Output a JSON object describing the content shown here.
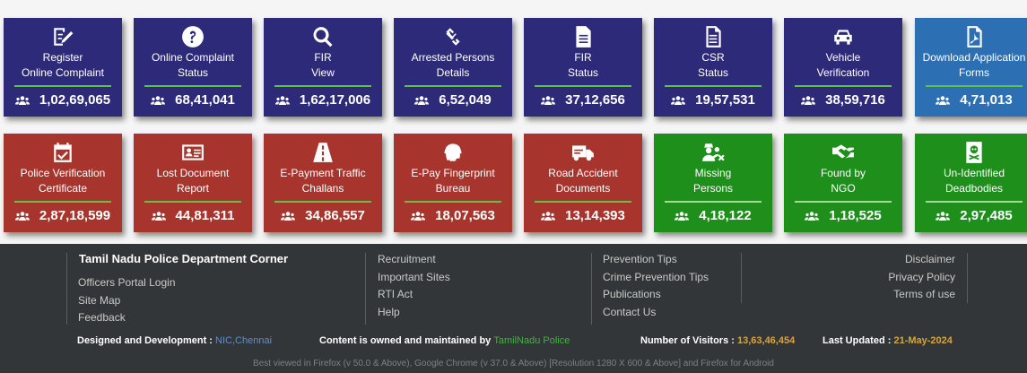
{
  "tiles_row1": [
    {
      "id": "register-online-complaint",
      "icon": "pen-paper-icon",
      "label": "Register\nOnline Complaint",
      "count": "1,02,69,065",
      "color": "blue"
    },
    {
      "id": "online-complaint-status",
      "icon": "question-circle-icon",
      "label": "Online  Complaint\nStatus",
      "count": "68,41,041",
      "color": "blue"
    },
    {
      "id": "fir-view",
      "icon": "search-icon",
      "label": "FIR\nView",
      "count": "1,62,17,006",
      "color": "blue"
    },
    {
      "id": "arrested-persons-details",
      "icon": "chain-link-icon",
      "label": "Arrested  Persons\nDetails",
      "count": "6,52,049",
      "color": "blue"
    },
    {
      "id": "fir-status",
      "icon": "document-icon",
      "label": "FIR\nStatus",
      "count": "37,12,656",
      "color": "blue"
    },
    {
      "id": "csr-status",
      "icon": "list-document-icon",
      "label": "CSR\nStatus",
      "count": "19,57,531",
      "color": "blue"
    },
    {
      "id": "vehicle-verification",
      "icon": "car-icon",
      "label": "Vehicle\nVerification",
      "count": "38,59,716",
      "color": "blue"
    },
    {
      "id": "download-application-forms",
      "icon": "pdf-file-icon",
      "label": "Download Application\nForms",
      "count": "4,71,013",
      "color": "lblue"
    }
  ],
  "tiles_row2": [
    {
      "id": "police-verification-certificate",
      "icon": "calendar-check-icon",
      "label": "Police Verification\nCertificate",
      "count": "2,87,18,599",
      "color": "red"
    },
    {
      "id": "lost-document-report",
      "icon": "id-card-icon",
      "label": "Lost Document\nReport",
      "count": "44,81,311",
      "color": "red"
    },
    {
      "id": "e-payment-traffic-challans",
      "icon": "road-icon",
      "label": "E-Payment Traffic\nChallans",
      "count": "34,86,557",
      "color": "red"
    },
    {
      "id": "e-pay-fingerprint-bureau",
      "icon": "fingerprint-icon",
      "label": "E-Pay Fingerprint\nBureau",
      "count": "18,07,563",
      "color": "red"
    },
    {
      "id": "road-accident-documents",
      "icon": "truck-icon",
      "label": "Road Accident\nDocuments",
      "count": "13,14,393",
      "color": "red"
    },
    {
      "id": "missing-persons",
      "icon": "user-secret-icon",
      "label": "Missing\nPersons",
      "count": "4,18,122",
      "color": "green"
    },
    {
      "id": "found-by-ngo",
      "icon": "handshake-icon",
      "label": "Found by\nNGO",
      "count": "1,18,525",
      "color": "green"
    },
    {
      "id": "unidentified-deadbodies",
      "icon": "skull-card-icon",
      "label": "Un-Identified\nDeadbodies",
      "count": "2,97,485",
      "color": "green"
    }
  ],
  "footer": {
    "heading": "Tamil Nadu Police Department Corner",
    "col1": [
      "Officers Portal Login",
      "Site Map",
      "Feedback"
    ],
    "col2": [
      "Recruitment",
      "Important Sites",
      "RTI Act",
      "Help"
    ],
    "col3": [
      "Prevention Tips",
      "Crime Prevention Tips",
      "Publications",
      "Contact Us"
    ],
    "col4": [
      "Disclaimer",
      "Privacy Policy",
      "Terms of use"
    ],
    "designed_label": "Designed and Development : ",
    "designed_nic": "NIC",
    "designed_chennai": "Chennai",
    "content_label": "Content is owned and maintained by ",
    "content_org": "TamilNadu Police",
    "visitors_label": "Number of Visitors : ",
    "visitors_value": "13,63,46,454",
    "updated_label": "Last Updated : ",
    "updated_value": "21-May-2024",
    "best_viewed": "Best viewed in Firefox (v 50.0 & Above), Google Chrome (v 37.0 & Above) [Resolution 1280 X 600 & Above] and Firefox for Android"
  }
}
